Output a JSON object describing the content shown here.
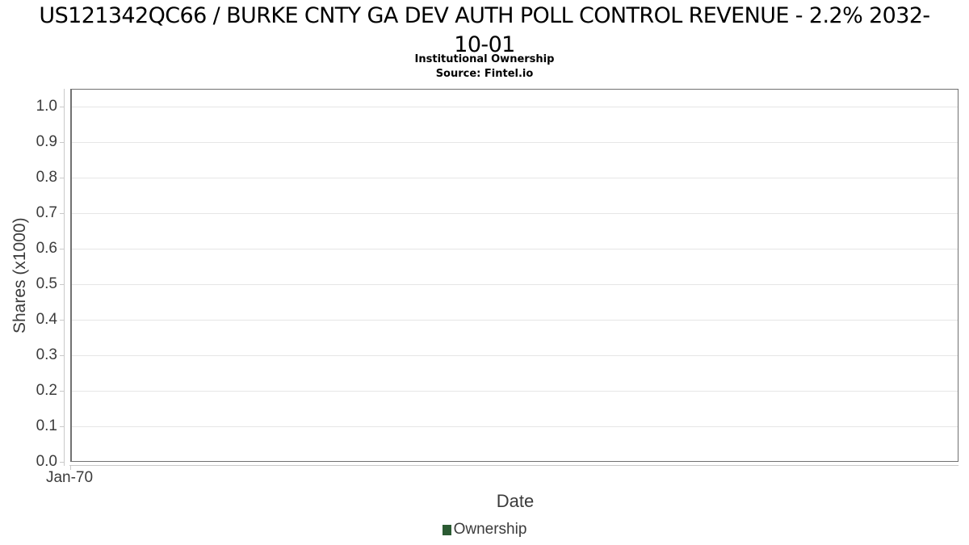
{
  "header": {
    "title_line1": "US121342QC66 / BURKE CNTY GA DEV AUTH POLL CONTROL REVENUE - 2.2% 2032-",
    "title_line2": "10-01",
    "subtitle": "Institutional Ownership",
    "source": "Source: Fintel.io"
  },
  "chart_data": {
    "type": "line",
    "title": "US121342QC66 / BURKE CNTY GA DEV AUTH POLL CONTROL REVENUE - 2.2% 2032-10-01",
    "subtitle": "Institutional Ownership",
    "source": "Source: Fintel.io",
    "xlabel": "Date",
    "ylabel": "Shares (x1000)",
    "x_tick_labels": [
      "Jan-70"
    ],
    "y_tick_labels": [
      "0.0",
      "0.1",
      "0.2",
      "0.3",
      "0.4",
      "0.5",
      "0.6",
      "0.7",
      "0.8",
      "0.9",
      "1.0"
    ],
    "ylim": [
      0.0,
      1.05
    ],
    "grid": true,
    "legend_position": "bottom-center",
    "series": [
      {
        "name": "Ownership",
        "color": "#2b5b33",
        "points": []
      }
    ]
  },
  "colors": {
    "title_text": "#000000",
    "axis_text": "#3b3b3b",
    "plot_border": "#717171",
    "gridline": "#e6e6e6",
    "axis_line": "#c9c9c9",
    "legend_swatch": "#2b5b33"
  }
}
